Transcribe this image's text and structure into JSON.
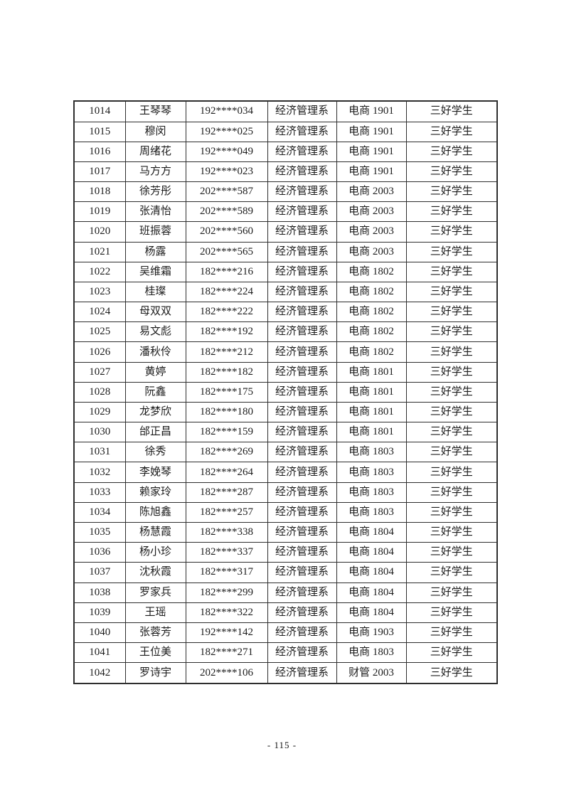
{
  "page": {
    "footer_page_number": "- 115 -"
  },
  "table": {
    "fields": [
      "id",
      "name",
      "student_no",
      "department",
      "class_name",
      "award"
    ],
    "rows": [
      [
        "1014",
        "王琴琴",
        "192****034",
        "经济管理系",
        "电商 1901",
        "三好学生"
      ],
      [
        "1015",
        "穆闵",
        "192****025",
        "经济管理系",
        "电商 1901",
        "三好学生"
      ],
      [
        "1016",
        "周绪花",
        "192****049",
        "经济管理系",
        "电商 1901",
        "三好学生"
      ],
      [
        "1017",
        "马方方",
        "192****023",
        "经济管理系",
        "电商 1901",
        "三好学生"
      ],
      [
        "1018",
        "徐芳彤",
        "202****587",
        "经济管理系",
        "电商 2003",
        "三好学生"
      ],
      [
        "1019",
        "张清怡",
        "202****589",
        "经济管理系",
        "电商 2003",
        "三好学生"
      ],
      [
        "1020",
        "班振蓉",
        "202****560",
        "经济管理系",
        "电商 2003",
        "三好学生"
      ],
      [
        "1021",
        "杨露",
        "202****565",
        "经济管理系",
        "电商 2003",
        "三好学生"
      ],
      [
        "1022",
        "吴维霜",
        "182****216",
        "经济管理系",
        "电商 1802",
        "三好学生"
      ],
      [
        "1023",
        "桂璨",
        "182****224",
        "经济管理系",
        "电商 1802",
        "三好学生"
      ],
      [
        "1024",
        "母双双",
        "182****222",
        "经济管理系",
        "电商 1802",
        "三好学生"
      ],
      [
        "1025",
        "易文彪",
        "182****192",
        "经济管理系",
        "电商 1802",
        "三好学生"
      ],
      [
        "1026",
        "潘秋伶",
        "182****212",
        "经济管理系",
        "电商 1802",
        "三好学生"
      ],
      [
        "1027",
        "黄婷",
        "182****182",
        "经济管理系",
        "电商 1801",
        "三好学生"
      ],
      [
        "1028",
        "阮鑫",
        "182****175",
        "经济管理系",
        "电商 1801",
        "三好学生"
      ],
      [
        "1029",
        "龙梦欣",
        "182****180",
        "经济管理系",
        "电商 1801",
        "三好学生"
      ],
      [
        "1030",
        "邰正昌",
        "182****159",
        "经济管理系",
        "电商 1801",
        "三好学生"
      ],
      [
        "1031",
        "徐秀",
        "182****269",
        "经济管理系",
        "电商 1803",
        "三好学生"
      ],
      [
        "1032",
        "李娩琴",
        "182****264",
        "经济管理系",
        "电商 1803",
        "三好学生"
      ],
      [
        "1033",
        "赖家玲",
        "182****287",
        "经济管理系",
        "电商 1803",
        "三好学生"
      ],
      [
        "1034",
        "陈旭鑫",
        "182****257",
        "经济管理系",
        "电商 1803",
        "三好学生"
      ],
      [
        "1035",
        "杨慧霞",
        "182****338",
        "经济管理系",
        "电商 1804",
        "三好学生"
      ],
      [
        "1036",
        "杨小珍",
        "182****337",
        "经济管理系",
        "电商 1804",
        "三好学生"
      ],
      [
        "1037",
        "沈秋霞",
        "182****317",
        "经济管理系",
        "电商 1804",
        "三好学生"
      ],
      [
        "1038",
        "罗家兵",
        "182****299",
        "经济管理系",
        "电商 1804",
        "三好学生"
      ],
      [
        "1039",
        "王瑶",
        "182****322",
        "经济管理系",
        "电商 1804",
        "三好学生"
      ],
      [
        "1040",
        "张蓉芳",
        "192****142",
        "经济管理系",
        "电商 1903",
        "三好学生"
      ],
      [
        "1041",
        "王位美",
        "182****271",
        "经济管理系",
        "电商 1803",
        "三好学生"
      ],
      [
        "1042",
        "罗诗宇",
        "202****106",
        "经济管理系",
        "财管 2003",
        "三好学生"
      ]
    ]
  }
}
